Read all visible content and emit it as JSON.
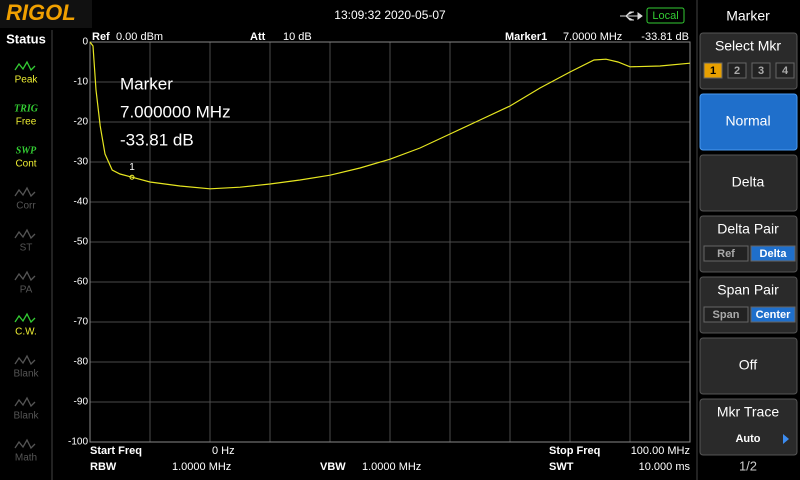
{
  "header": {
    "logo": "RIGOL",
    "datetime": "13:09:32 2020-05-07",
    "mode": "Local"
  },
  "status": {
    "title": "Status",
    "items": [
      {
        "label": "Peak",
        "active": true
      },
      {
        "tag": "TRIG",
        "label": "Free",
        "active": true
      },
      {
        "tag": "SWP",
        "label": "Cont",
        "active": true
      },
      {
        "label": "Corr",
        "active": false
      },
      {
        "label": "ST",
        "active": false
      },
      {
        "label": "PA",
        "active": false
      },
      {
        "label": "C.W.",
        "active": true
      },
      {
        "label": "Blank",
        "active": false
      },
      {
        "label": "Blank",
        "active": false
      },
      {
        "label": "Math",
        "active": false
      }
    ]
  },
  "info": {
    "ref_label": "Ref",
    "ref": "0.00 dBm",
    "att_label": "Att",
    "att": "10 dB",
    "marker_label": "Marker1",
    "marker_freq": "7.0000 MHz",
    "marker_level": "-33.81 dB"
  },
  "chart_data": {
    "type": "line",
    "x": [
      0,
      0.5,
      1,
      1.7,
      2.5,
      3.7,
      5,
      7,
      10,
      15,
      20,
      25,
      30,
      35,
      40,
      45,
      50,
      55,
      60,
      65,
      70,
      75,
      80,
      84,
      86,
      88,
      90,
      95,
      100
    ],
    "series": [
      {
        "color": "#e6e620",
        "values": [
          0,
          -1,
          -12,
          -21,
          -28,
          -32,
          -33,
          -33.8,
          -35,
          -36,
          -36.7,
          -36.3,
          -35.5,
          -34.5,
          -33.3,
          -31.5,
          -29.3,
          -26.5,
          -23,
          -19.5,
          -16,
          -11.5,
          -7.5,
          -4.5,
          -4.3,
          -5,
          -6.2,
          -6,
          -5.3
        ]
      }
    ],
    "xlim": [
      0,
      100
    ],
    "xticks": [
      0,
      10,
      20,
      30,
      40,
      50,
      60,
      70,
      80,
      90,
      100
    ],
    "ylim": [
      -100,
      0
    ],
    "yticks": [
      0,
      -10,
      -20,
      -30,
      -40,
      -50,
      -60,
      -70,
      -80,
      -90,
      -100
    ],
    "grid": true,
    "marker": {
      "label": "1",
      "x": 7,
      "y": -33.81
    },
    "annotation": [
      "Marker",
      "7.000000 MHz",
      "-33.81 dB"
    ]
  },
  "sweep": {
    "start_label": "Start Freq",
    "start": "0 Hz",
    "stop_label": "Stop Freq",
    "stop": "100.00 MHz",
    "rbw_label": "RBW",
    "rbw": "1.0000 MHz",
    "vbw_label": "VBW",
    "vbw": "1.0000 MHz",
    "swt_label": "SWT",
    "swt": "10.000 ms"
  },
  "menu": {
    "title": "Marker",
    "buttons": [
      {
        "label": "Select Mkr",
        "options": [
          "1",
          "2",
          "3",
          "4"
        ],
        "selected": 0
      },
      {
        "label": "Normal",
        "active": true
      },
      {
        "label": "Delta"
      },
      {
        "label": "Delta Pair",
        "options": [
          "Ref",
          "Delta"
        ],
        "selected": 1
      },
      {
        "label": "Span Pair",
        "options": [
          "Span",
          "Center"
        ],
        "selected": 1
      },
      {
        "label": "Off"
      },
      {
        "label": "Mkr Trace",
        "value": "Auto"
      }
    ],
    "page": "1/2"
  }
}
